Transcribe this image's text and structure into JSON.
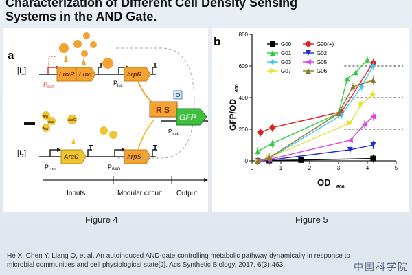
{
  "slide": {
    "title_line1": "Characterization of Different Cell Density Sensing",
    "title_line2": "Systems in the AND Gate.",
    "caption_left": "Figure 4",
    "caption_right": "Figure 5",
    "citation": "He X, Chen Y, Liang Q, et al. An autoinduced AND-gate controlling metabolic pathway dynamically in response to microbial communities and cell physiological state[J]. Acs Synthetic Biology, 2017, 6(3):463.",
    "logo_text": "中国科学院"
  },
  "diagram": {
    "panel_label": "a",
    "i1": "[I",
    "i1_sub": "1",
    "i2": "[I",
    "i2_sub": "2",
    "pcon_top": "P",
    "pcon_top_sub": "con",
    "pcon_bottom": "P",
    "pcon_bottom_sub": "con",
    "luxr": "LuxR",
    "luxi": "LuxI",
    "hrpr": "hrpR",
    "plux": "P",
    "plux_sub": "lux",
    "arac_gene": "AraC",
    "arac_protein": "AraC",
    "pbad": "P",
    "pbad_sub": "BAD",
    "hrps": "hrpS",
    "rs": "R S",
    "o": "O",
    "gfp": "GFP",
    "phrpl": "P",
    "phrpl_sub": "hrpL",
    "ara": "Ara",
    "inputs": "Inputs",
    "modular": "Modular circuit",
    "output": "Output",
    "colors": {
      "orange": "#f3a332",
      "red": "#d93025",
      "green": "#3fbf3f",
      "yellow": "#f1c232"
    }
  },
  "chart_data": {
    "panel_label": "b",
    "type": "scatter",
    "xlabel": "OD",
    "xlabel_sub": "600",
    "ylabel": "GFP/OD",
    "ylabel_sub": "600",
    "xlim": [
      0,
      5
    ],
    "ylim": [
      0,
      800
    ],
    "xticks": [
      0,
      1,
      2,
      3,
      4,
      5
    ],
    "yticks": [
      0,
      200,
      400,
      600,
      800
    ],
    "reference_lines": [
      200,
      400,
      600
    ],
    "legend_position": "top-left",
    "series": [
      {
        "name": "G00",
        "color": "#000000",
        "marker": "square",
        "x": [
          0.2,
          0.6,
          1.7,
          4.2
        ],
        "y": [
          0,
          2,
          5,
          15
        ]
      },
      {
        "name": "G00(+)",
        "color": "#e02020",
        "marker": "circle",
        "x": [
          0.3,
          0.7,
          3.1,
          4.2
        ],
        "y": [
          180,
          210,
          310,
          620
        ]
      },
      {
        "name": "G01",
        "color": "#2ecc40",
        "marker": "triangle-up",
        "x": [
          0.2,
          0.7,
          3.0,
          3.3,
          3.6,
          4.0
        ],
        "y": [
          60,
          110,
          300,
          520,
          560,
          640
        ]
      },
      {
        "name": "G02",
        "color": "#1f2ad6",
        "marker": "triangle-down",
        "x": [
          0.2,
          0.6,
          3.4,
          4.2
        ],
        "y": [
          0,
          5,
          70,
          100
        ]
      },
      {
        "name": "G03",
        "color": "#3ec8f0",
        "marker": "diamond",
        "x": [
          0.2,
          0.6,
          3.1,
          3.8,
          4.2
        ],
        "y": [
          0,
          15,
          290,
          470,
          600
        ]
      },
      {
        "name": "G05",
        "color": "#e040e0",
        "marker": "triangle-left",
        "x": [
          0.2,
          0.6,
          3.4,
          3.9,
          4.2
        ],
        "y": [
          0,
          10,
          130,
          230,
          280
        ]
      },
      {
        "name": "G07",
        "color": "#e8e030",
        "marker": "triangle-right",
        "x": [
          0.2,
          0.6,
          3.4,
          3.8,
          4.2
        ],
        "y": [
          0,
          20,
          240,
          360,
          420
        ]
      },
      {
        "name": "G06",
        "color": "#8b7a2a",
        "marker": "star",
        "x": [
          0.2,
          0.6,
          3.0,
          3.5,
          4.2
        ],
        "y": [
          0,
          20,
          300,
          470,
          510
        ]
      }
    ]
  }
}
